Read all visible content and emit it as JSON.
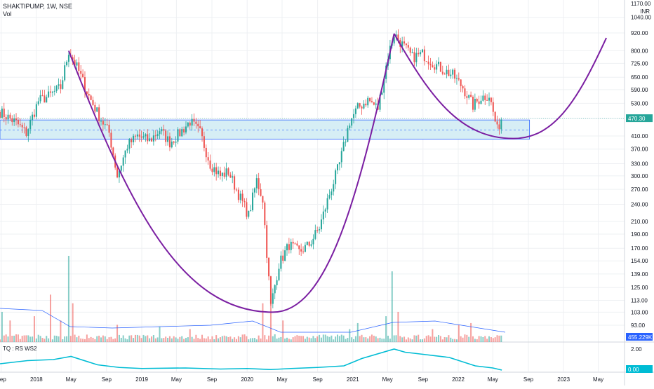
{
  "header": {
    "symbol_line": "SHAKTIPUMP, 1W, NSE",
    "volume_label": "Vol",
    "currency_label": "INR",
    "indicator_label": "TQ : RS WS2"
  },
  "colors": {
    "up": "#26a69a",
    "down": "#ef5350",
    "cup": "#7b1fa2",
    "zone_fill": "#d6eef5",
    "zone_line": "#2962ff",
    "rs_line": "#00bcd4",
    "grid": "#eef0f3",
    "current_price_tag": "#26a69a",
    "volume_tag": "#2962ff",
    "rs_tag": "#00bcd4"
  },
  "chart_data": {
    "type": "candlestick",
    "price_axis": {
      "scale": "log",
      "ticks": [
        93,
        103,
        113,
        125,
        139,
        154,
        170,
        190,
        210,
        240,
        270,
        300,
        330,
        370,
        410,
        470,
        530,
        590,
        650,
        725,
        800,
        920,
        1040
      ],
      "tick_labels": [
        "93.00",
        "103.00",
        "113.00",
        "125.00",
        "139.00",
        "154.00",
        "170.00",
        "190.00",
        "210.00",
        "240.00",
        "270.00",
        "300.00",
        "330.00",
        "370.00",
        "410.00",
        "470.00",
        "530.00",
        "590.00",
        "650.00",
        "725.00",
        "800.00",
        "920.00",
        "1040.00"
      ],
      "top_label_partial": "1170.00"
    },
    "time_axis": {
      "start": "2017-08-28",
      "end": "2023-07-31",
      "labels": [
        {
          "text": "Sep",
          "date": "2017-09-01"
        },
        {
          "text": "2018",
          "date": "2018-01-01"
        },
        {
          "text": "May",
          "date": "2018-05-01"
        },
        {
          "text": "Sep",
          "date": "2018-09-01"
        },
        {
          "text": "2019",
          "date": "2019-01-01"
        },
        {
          "text": "May",
          "date": "2019-05-01"
        },
        {
          "text": "Sep",
          "date": "2019-09-01"
        },
        {
          "text": "2020",
          "date": "2020-01-01"
        },
        {
          "text": "May",
          "date": "2020-05-01"
        },
        {
          "text": "Sep",
          "date": "2020-09-01"
        },
        {
          "text": "2021",
          "date": "2021-01-01"
        },
        {
          "text": "May",
          "date": "2021-05-01"
        },
        {
          "text": "Sep",
          "date": "2021-09-01"
        },
        {
          "text": "2022",
          "date": "2022-01-01"
        },
        {
          "text": "May",
          "date": "2022-05-01"
        },
        {
          "text": "Sep",
          "date": "2022-09-01"
        },
        {
          "text": "2023",
          "date": "2023-01-01"
        },
        {
          "text": "May",
          "date": "2023-05-01"
        }
      ]
    },
    "price_path": [
      [
        "2017-08-28",
        495
      ],
      [
        "2017-10-23",
        455
      ],
      [
        "2017-11-27",
        420
      ],
      [
        "2018-01-08",
        540
      ],
      [
        "2018-02-12",
        560
      ],
      [
        "2018-03-26",
        600
      ],
      [
        "2018-04-23",
        800
      ],
      [
        "2018-05-28",
        680
      ],
      [
        "2018-07-02",
        560
      ],
      [
        "2018-08-06",
        480
      ],
      [
        "2018-09-10",
        420
      ],
      [
        "2018-10-08",
        300
      ],
      [
        "2018-11-12",
        380
      ],
      [
        "2018-12-17",
        410
      ],
      [
        "2019-01-28",
        395
      ],
      [
        "2019-03-04",
        430
      ],
      [
        "2019-04-08",
        390
      ],
      [
        "2019-05-13",
        420
      ],
      [
        "2019-06-17",
        460
      ],
      [
        "2019-07-22",
        420
      ],
      [
        "2019-08-26",
        330
      ],
      [
        "2019-09-30",
        300
      ],
      [
        "2019-10-28",
        310
      ],
      [
        "2019-12-02",
        260
      ],
      [
        "2020-01-06",
        220
      ],
      [
        "2020-02-03",
        290
      ],
      [
        "2020-02-24",
        250
      ],
      [
        "2020-03-23",
        108
      ],
      [
        "2020-04-20",
        150
      ],
      [
        "2020-05-25",
        175
      ],
      [
        "2020-06-29",
        165
      ],
      [
        "2020-08-03",
        175
      ],
      [
        "2020-09-07",
        200
      ],
      [
        "2020-10-12",
        260
      ],
      [
        "2020-11-16",
        330
      ],
      [
        "2020-12-21",
        460
      ],
      [
        "2021-01-18",
        510
      ],
      [
        "2021-02-22",
        545
      ],
      [
        "2021-03-29",
        510
      ],
      [
        "2021-05-03",
        770
      ],
      [
        "2021-05-24",
        915
      ],
      [
        "2021-06-21",
        840
      ],
      [
        "2021-07-26",
        760
      ],
      [
        "2021-08-30",
        780
      ],
      [
        "2021-10-04",
        730
      ],
      [
        "2021-11-08",
        690
      ],
      [
        "2021-12-13",
        660
      ],
      [
        "2022-01-17",
        600
      ],
      [
        "2022-02-21",
        520
      ],
      [
        "2022-03-21",
        555
      ],
      [
        "2022-04-18",
        565
      ],
      [
        "2022-05-16",
        430
      ],
      [
        "2022-05-30",
        470.3
      ]
    ],
    "current_price": 470.3,
    "current_price_label": "470.30",
    "support_zone": {
      "low": 400,
      "high": 465,
      "mid": 430
    },
    "cup_patterns": [
      {
        "from": [
          "2018-04-23",
          800
        ],
        "bottom": [
          "2020-03-30",
          103
        ],
        "to": [
          "2021-05-24",
          915
        ]
      },
      {
        "from": [
          "2021-05-24",
          915
        ],
        "bottom": [
          "2022-07-11",
          402
        ],
        "to": [
          "2023-05-29",
          885
        ]
      }
    ],
    "volume": {
      "last_label": "455.229K",
      "spikes": [
        [
          "2017-09-04",
          0.35
        ],
        [
          "2017-10-02",
          0.25
        ],
        [
          "2017-12-25",
          0.3
        ],
        [
          "2018-02-19",
          0.55
        ],
        [
          "2018-03-26",
          0.25
        ],
        [
          "2018-04-23",
          1.0
        ],
        [
          "2018-05-07",
          0.45
        ],
        [
          "2018-10-08",
          0.2
        ],
        [
          "2019-03-04",
          0.18
        ],
        [
          "2019-06-17",
          0.15
        ],
        [
          "2020-02-24",
          0.45
        ],
        [
          "2020-03-23",
          0.5
        ],
        [
          "2020-05-04",
          0.25
        ],
        [
          "2020-12-21",
          0.15
        ],
        [
          "2021-01-18",
          0.22
        ],
        [
          "2021-04-26",
          0.3
        ],
        [
          "2021-05-17",
          0.82
        ],
        [
          "2021-06-07",
          0.35
        ],
        [
          "2021-10-04",
          0.15
        ],
        [
          "2022-01-03",
          0.2
        ],
        [
          "2022-02-14",
          0.22
        ]
      ]
    },
    "rs_indicator": {
      "ticks": [
        2.0,
        0.0
      ],
      "tick_labels": [
        "2.00",
        "0.00"
      ],
      "last_label": "0.00",
      "path": [
        [
          "2017-08-28",
          0.6
        ],
        [
          "2017-12-01",
          0.9
        ],
        [
          "2018-03-01",
          1.0
        ],
        [
          "2018-05-01",
          1.3
        ],
        [
          "2018-08-01",
          0.5
        ],
        [
          "2018-10-15",
          0.25
        ],
        [
          "2019-01-01",
          0.15
        ],
        [
          "2019-06-01",
          0.2
        ],
        [
          "2019-10-01",
          0.1
        ],
        [
          "2020-01-01",
          0.15
        ],
        [
          "2020-03-23",
          0.05
        ],
        [
          "2020-06-01",
          0.15
        ],
        [
          "2020-09-01",
          0.25
        ],
        [
          "2020-12-01",
          0.4
        ],
        [
          "2021-02-01",
          1.1
        ],
        [
          "2021-05-24",
          2.0
        ],
        [
          "2021-07-01",
          1.7
        ],
        [
          "2021-09-01",
          1.5
        ],
        [
          "2021-12-01",
          1.2
        ],
        [
          "2022-03-01",
          0.4
        ],
        [
          "2022-05-01",
          0.2
        ],
        [
          "2022-06-01",
          0.0
        ]
      ]
    }
  }
}
